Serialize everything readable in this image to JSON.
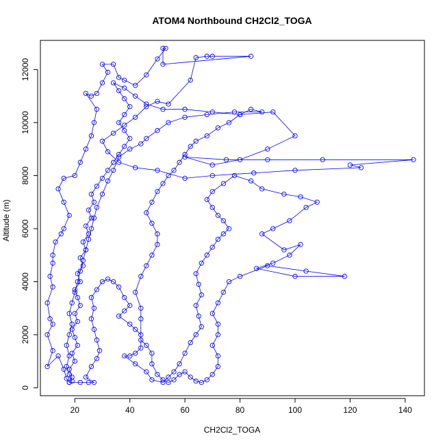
{
  "chart_data": {
    "type": "scatter",
    "title": "ATOM4 Northbound CH2Cl2_TOGA",
    "xlabel": "CH2Cl2_TOGA",
    "ylabel": "Altitude (m)",
    "xlim": [
      7.5,
      147
    ],
    "ylim": [
      -300,
      13100
    ],
    "xticks": [
      20,
      40,
      60,
      80,
      100,
      120,
      140
    ],
    "yticks": [
      0,
      2000,
      4000,
      6000,
      8000,
      10000,
      12000
    ],
    "grid": false,
    "legend": "none",
    "marker": "open-circle",
    "connect_points": true,
    "color": "#0000ff",
    "points": [
      [
        18,
        200
      ],
      [
        19,
        400
      ],
      [
        18,
        700
      ],
      [
        20,
        1000
      ],
      [
        19,
        1300
      ],
      [
        21,
        1600
      ],
      [
        20,
        1900
      ],
      [
        19,
        2200
      ],
      [
        21,
        2500
      ],
      [
        20,
        2800
      ],
      [
        22,
        3100
      ],
      [
        21,
        3400
      ],
      [
        20,
        3700
      ],
      [
        22,
        4000
      ],
      [
        21,
        4300
      ],
      [
        23,
        4600
      ],
      [
        22,
        4900
      ],
      [
        24,
        5200
      ],
      [
        23,
        5500
      ],
      [
        25,
        5800
      ],
      [
        24,
        6100
      ],
      [
        26,
        6400
      ],
      [
        25,
        6700
      ],
      [
        27,
        7000
      ],
      [
        26,
        7300
      ],
      [
        28,
        7600
      ],
      [
        30,
        7900
      ],
      [
        32,
        8200
      ],
      [
        34,
        8500
      ],
      [
        36,
        8800
      ],
      [
        38,
        9100
      ],
      [
        40,
        9400
      ],
      [
        38,
        9700
      ],
      [
        36,
        10000
      ],
      [
        38,
        10300
      ],
      [
        40,
        10600
      ],
      [
        38,
        10900
      ],
      [
        36,
        11200
      ],
      [
        34,
        11500
      ],
      [
        38,
        11300
      ],
      [
        42,
        11000
      ],
      [
        46,
        10700
      ],
      [
        52,
        10500
      ],
      [
        60,
        10500
      ],
      [
        70,
        10400
      ],
      [
        80,
        10300
      ],
      [
        92,
        10400
      ],
      [
        100,
        9500
      ],
      [
        90,
        9000
      ],
      [
        80,
        8600
      ],
      [
        70,
        8400
      ],
      [
        60,
        8700
      ],
      [
        75,
        8600
      ],
      [
        90,
        8600
      ],
      [
        110,
        8600
      ],
      [
        143,
        8600
      ],
      [
        120,
        8400
      ],
      [
        124,
        8300
      ],
      [
        100,
        8200
      ],
      [
        85,
        8100
      ],
      [
        70,
        8000
      ],
      [
        60,
        7900
      ],
      [
        50,
        8200
      ],
      [
        42,
        8300
      ],
      [
        36,
        8500
      ],
      [
        32,
        8900
      ],
      [
        30,
        9300
      ],
      [
        34,
        9600
      ],
      [
        38,
        9900
      ],
      [
        42,
        10200
      ],
      [
        46,
        10600
      ],
      [
        50,
        10800
      ],
      [
        54,
        10700
      ],
      [
        62,
        11600
      ],
      [
        64,
        12450
      ],
      [
        68,
        12500
      ],
      [
        70,
        12500
      ],
      [
        84,
        12500
      ],
      [
        52,
        12200
      ],
      [
        52,
        12800
      ],
      [
        53,
        12800
      ],
      [
        50,
        12400
      ],
      [
        46,
        11800
      ],
      [
        42,
        11400
      ],
      [
        38,
        11600
      ],
      [
        36,
        11700
      ],
      [
        34,
        12200
      ],
      [
        30,
        12200
      ],
      [
        32,
        11900
      ],
      [
        30,
        11500
      ],
      [
        28,
        11100
      ],
      [
        26,
        11000
      ],
      [
        24,
        11100
      ],
      [
        28,
        10500
      ],
      [
        27,
        10000
      ],
      [
        26,
        9500
      ],
      [
        24,
        9000
      ],
      [
        22,
        8500
      ],
      [
        20,
        8000
      ],
      [
        16,
        7900
      ],
      [
        14,
        7500
      ],
      [
        16,
        7000
      ],
      [
        18,
        6500
      ],
      [
        16,
        6000
      ],
      [
        15,
        5800
      ],
      [
        13,
        5500
      ],
      [
        12,
        5000
      ],
      [
        12,
        4700
      ],
      [
        11,
        4200
      ],
      [
        12,
        3800
      ],
      [
        10,
        3200
      ],
      [
        11,
        2600
      ],
      [
        12,
        2400
      ],
      [
        10,
        2000
      ],
      [
        12,
        1400
      ],
      [
        10,
        800
      ],
      [
        14,
        1200
      ],
      [
        16,
        700
      ],
      [
        17,
        350
      ],
      [
        18,
        200
      ],
      [
        22,
        200
      ],
      [
        25,
        200
      ],
      [
        27,
        200
      ],
      [
        24,
        400
      ],
      [
        26,
        800
      ],
      [
        28,
        1100
      ],
      [
        29,
        1400
      ],
      [
        28,
        1800
      ],
      [
        27,
        2200
      ],
      [
        26,
        2600
      ],
      [
        27,
        3000
      ],
      [
        26,
        3400
      ],
      [
        28,
        3700
      ],
      [
        30,
        4000
      ],
      [
        32,
        4100
      ],
      [
        34,
        4000
      ],
      [
        36,
        3800
      ],
      [
        38,
        3400
      ],
      [
        40,
        3100
      ],
      [
        38,
        2900
      ],
      [
        36,
        2700
      ],
      [
        40,
        2400
      ],
      [
        42,
        2200
      ],
      [
        44,
        2000
      ],
      [
        44,
        1500
      ],
      [
        42,
        1300
      ],
      [
        40,
        1200
      ],
      [
        38,
        1200
      ],
      [
        42,
        900
      ],
      [
        46,
        600
      ],
      [
        48,
        300
      ],
      [
        52,
        200
      ],
      [
        54,
        400
      ],
      [
        56,
        600
      ],
      [
        58,
        900
      ],
      [
        60,
        1300
      ],
      [
        62,
        1700
      ],
      [
        64,
        2000
      ],
      [
        66,
        2300
      ],
      [
        65,
        2700
      ],
      [
        64,
        3100
      ],
      [
        66,
        3500
      ],
      [
        65,
        3900
      ],
      [
        64,
        4300
      ],
      [
        66,
        4700
      ],
      [
        68,
        5000
      ],
      [
        70,
        5300
      ],
      [
        72,
        5600
      ],
      [
        74,
        5800
      ],
      [
        76,
        6000
      ],
      [
        74,
        6300
      ],
      [
        72,
        6500
      ],
      [
        70,
        6800
      ],
      [
        68,
        7100
      ],
      [
        70,
        7400
      ],
      [
        74,
        7700
      ],
      [
        78,
        8000
      ],
      [
        84,
        7800
      ],
      [
        88,
        7500
      ],
      [
        96,
        7300
      ],
      [
        102,
        7200
      ],
      [
        108,
        7000
      ],
      [
        104,
        6800
      ],
      [
        98,
        6300
      ],
      [
        92,
        6000
      ],
      [
        88,
        5800
      ],
      [
        96,
        5200
      ],
      [
        102,
        5400
      ],
      [
        98,
        5000
      ],
      [
        92,
        4700
      ],
      [
        86,
        4500
      ],
      [
        100,
        4200
      ],
      [
        118,
        4200
      ],
      [
        104,
        4400
      ],
      [
        90,
        4600
      ],
      [
        80,
        4200
      ],
      [
        76,
        4000
      ],
      [
        74,
        3600
      ],
      [
        72,
        3200
      ],
      [
        70,
        2800
      ],
      [
        72,
        2400
      ],
      [
        72,
        2000
      ],
      [
        70,
        1600
      ],
      [
        72,
        1200
      ],
      [
        72,
        800
      ],
      [
        70,
        500
      ],
      [
        68,
        300
      ],
      [
        66,
        200
      ],
      [
        64,
        250
      ],
      [
        62,
        400
      ],
      [
        60,
        600
      ],
      [
        58,
        500
      ],
      [
        56,
        300
      ],
      [
        54,
        200
      ],
      [
        52,
        300
      ],
      [
        50,
        500
      ],
      [
        48,
        900
      ],
      [
        48,
        1300
      ],
      [
        46,
        1600
      ],
      [
        44,
        1800
      ],
      [
        44,
        2600
      ],
      [
        44,
        3000
      ],
      [
        42,
        3600
      ],
      [
        44,
        4200
      ],
      [
        46,
        4600
      ],
      [
        48,
        5000
      ],
      [
        50,
        5400
      ],
      [
        50,
        5800
      ],
      [
        48,
        6200
      ],
      [
        46,
        6600
      ],
      [
        48,
        7000
      ],
      [
        50,
        7400
      ],
      [
        52,
        7700
      ],
      [
        54,
        8000
      ],
      [
        56,
        8200
      ],
      [
        58,
        8500
      ],
      [
        60,
        8800
      ],
      [
        62,
        9100
      ],
      [
        64,
        9300
      ],
      [
        68,
        9500
      ],
      [
        72,
        9800
      ],
      [
        76,
        10000
      ],
      [
        80,
        10300
      ],
      [
        84,
        10500
      ],
      [
        88,
        10400
      ],
      [
        78,
        10400
      ],
      [
        68,
        10300
      ],
      [
        60,
        10200
      ],
      [
        54,
        10000
      ],
      [
        50,
        9700
      ],
      [
        46,
        9400
      ],
      [
        44,
        9200
      ],
      [
        40,
        9000
      ],
      [
        36,
        8700
      ],
      [
        34,
        8200
      ],
      [
        32,
        7800
      ],
      [
        30,
        7300
      ],
      [
        28,
        6800
      ],
      [
        27,
        6400
      ],
      [
        26,
        6000
      ],
      [
        25,
        5600
      ],
      [
        24,
        5200
      ],
      [
        23,
        4800
      ],
      [
        22,
        4400
      ],
      [
        21,
        4000
      ],
      [
        20,
        3600
      ],
      [
        19,
        3200
      ],
      [
        18,
        2800
      ],
      [
        19,
        2400
      ],
      [
        18,
        2000
      ],
      [
        17,
        1600
      ],
      [
        18,
        1200
      ],
      [
        17,
        800
      ],
      [
        18,
        500
      ],
      [
        19,
        250
      ]
    ]
  }
}
